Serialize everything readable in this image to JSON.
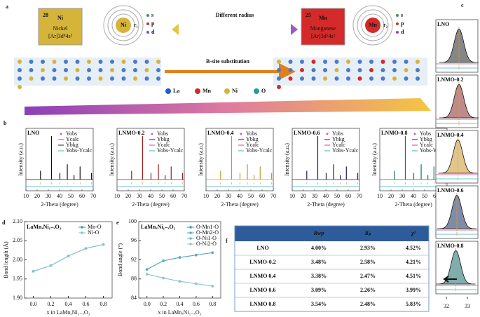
{
  "panel_a": {
    "label": "a",
    "ni": {
      "z": "28",
      "symbol": "Ni",
      "name": "Nickel",
      "config": "[Ar]3d⁸4s²"
    },
    "mn": {
      "z": "25",
      "symbol": "Mn",
      "name": "Manganese",
      "config": "[Ar]3d⁵4s²"
    },
    "orbitals": [
      "s",
      "p",
      "d"
    ],
    "ni_radius": "r₁",
    "mn_radius": "r₂",
    "radius_text": "Different radius",
    "substitution_text": "B-site substitution",
    "legend": [
      "La",
      "Mn",
      "Ni",
      "O"
    ]
  },
  "panel_b": {
    "label": "b",
    "ylabel": "Intensity (a.u.)",
    "xlabel": "2-Theta (degree)",
    "xlim": [
      10,
      70
    ],
    "xticks": [
      10,
      20,
      30,
      40,
      50,
      60,
      70
    ],
    "peak_positions": [
      23,
      32.8,
      40.3,
      46.9,
      52.9,
      58.3,
      68.5
    ],
    "peak_heights": [
      20,
      100,
      15,
      35,
      10,
      30,
      15
    ],
    "plots": [
      {
        "title": "LNO",
        "color": "#111111",
        "legend": [
          "Yobs",
          "Ycalc",
          "Ybkg",
          "Yobs-Ycalc"
        ]
      },
      {
        "title": "LNMO-0.2",
        "color": "#9b1c1c",
        "legend": [
          "Yobs",
          "Ybkg",
          "Ycalc",
          "Yobs-Ycalc"
        ]
      },
      {
        "title": "LNMO-0.4",
        "color": "#c8962b",
        "legend": [
          "Yobs",
          "Ybkg",
          "Ycalc",
          "Yobs-Ycalc"
        ]
      },
      {
        "title": "LNMO-0.6",
        "color": "#1c1c5c",
        "legend": [
          "Yobs",
          "Ybkg",
          "Ycalc",
          "Yobs-Ycalc"
        ]
      },
      {
        "title": "LNMO-0.8",
        "color": "#1a6a6a",
        "legend": [
          "Yobs",
          "Ybkg",
          "Ycalc",
          "Yobs-Ycalc"
        ]
      }
    ]
  },
  "panel_c": {
    "label": "c",
    "xlim": [
      31.5,
      33.5
    ],
    "xticks": [
      32,
      33
    ],
    "titles": [
      "LNO",
      "LNMO-0.2",
      "LNMO-0.4",
      "LNMO-0.6",
      "LNMO-0.8"
    ],
    "colors": [
      "#222222",
      "#8b2a2a",
      "#c8962b",
      "#1c2c5c",
      "#1a6a6a"
    ],
    "peak_centers": [
      32.6,
      32.6,
      32.55,
      32.5,
      32.45
    ]
  },
  "chart_data": [
    {
      "type": "line",
      "label": "d",
      "title": "LaMnₓNi₁₋ₓO₃",
      "xlabel": "x in LaMnₓNi₁₋ₓO₃",
      "ylabel": "Bond length (Å)",
      "x": [
        0,
        0.2,
        0.4,
        0.6,
        0.8
      ],
      "xlim": [
        -0.1,
        0.9
      ],
      "xticks": [
        {
          "value": 0,
          "label": "0.0"
        },
        {
          "value": 0.2,
          "label": "0.2"
        },
        {
          "value": 0.4,
          "label": "0.4"
        },
        {
          "value": 0.6,
          "label": "0.6"
        },
        {
          "value": 0.8,
          "label": "0.8"
        }
      ],
      "ylim": [
        1.9,
        2.1
      ],
      "yticks": [
        {
          "value": 1.9,
          "label": "1.90"
        },
        {
          "value": 1.95,
          "label": "1.95"
        },
        {
          "value": 2,
          "label": "2.00"
        },
        {
          "value": 2.05,
          "label": "2.05"
        },
        {
          "value": 2.1,
          "label": "2.10"
        }
      ],
      "series": [
        {
          "name": "Mn-O",
          "color": "#3a9aa8",
          "values": [
            1.97,
            1.985,
            2.01,
            2.03,
            2.04
          ]
        },
        {
          "name": "Ni-O",
          "color": "#7fc4cc",
          "values": [
            1.97,
            1.985,
            2.01,
            2.03,
            2.04
          ]
        }
      ]
    },
    {
      "type": "line",
      "label": "e",
      "title": "LaMnₓNi₁₋ₓO₃",
      "xlabel": "x in LaMnₓNi₁₋ₓO₃",
      "ylabel": "Bond angle (°)",
      "x": [
        0,
        0.2,
        0.4,
        0.6,
        0.8
      ],
      "xlim": [
        -0.1,
        0.9
      ],
      "xticks": [
        {
          "value": 0,
          "label": "0.0"
        },
        {
          "value": 0.2,
          "label": "0.2"
        },
        {
          "value": 0.4,
          "label": "0.4"
        },
        {
          "value": 0.6,
          "label": "0.6"
        },
        {
          "value": 0.8,
          "label": "0.8"
        }
      ],
      "ylim": [
        84,
        100
      ],
      "yticks": [
        84,
        88,
        92,
        96,
        100
      ],
      "series": [
        {
          "name": "O-Mn1-O",
          "color": "#3a9aa8",
          "values": [
            90,
            91.8,
            92.5,
            93,
            93.5
          ]
        },
        {
          "name": "O-Mn2-O",
          "color": "#5aaab8",
          "values": [
            90,
            91.8,
            92.5,
            93,
            93.5
          ]
        },
        {
          "name": "O-Ni1-O",
          "color": "#6fb8c2",
          "values": [
            89,
            88.2,
            87.5,
            87,
            86.5
          ]
        },
        {
          "name": "O-Ni2-O",
          "color": "#8cc8d0",
          "values": [
            89,
            88.2,
            87.5,
            87,
            86.5
          ]
        }
      ]
    }
  ],
  "table": {
    "label": "f",
    "header": [
      "Rwp",
      "Rₚ",
      "χ²"
    ],
    "rows": [
      [
        "LNO",
        "4.00%",
        "2.93%",
        "4.52%"
      ],
      [
        "LNMO-0.2",
        "3.48%",
        "2.58%",
        "4.21%"
      ],
      [
        "LNMO 0.4",
        "3.38%",
        "2.47%",
        "4.51%"
      ],
      [
        "LNMO 0.6",
        "3.09%",
        "2.26%",
        "3.99%"
      ],
      [
        "LNMO 0.8",
        "3.54%",
        "2.48%",
        "5.83%"
      ]
    ]
  }
}
